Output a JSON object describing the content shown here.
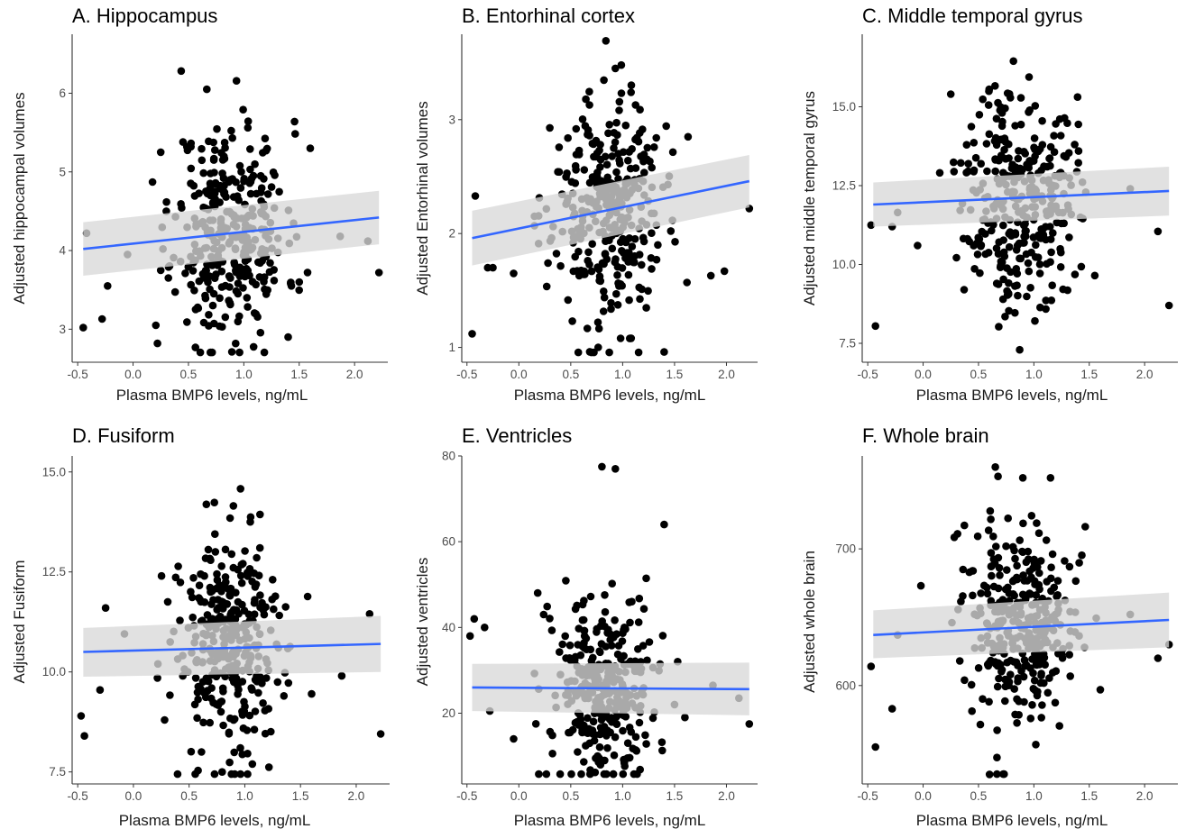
{
  "colors": {
    "points": "#000000",
    "fit_line": "#3366FF",
    "ci_band": "#d9d9d9",
    "axis": "#333333",
    "tick_text": "#4d4d4d"
  },
  "chart_data": [
    {
      "type": "scatter",
      "title": "A. Hippocampus",
      "xlabel": "Plasma BMP6 levels, ng/mL",
      "ylabel": "Adjusted hippocampal volumes",
      "xlim": [
        -0.55,
        2.3
      ],
      "ylim": [
        2.58,
        6.75
      ],
      "xticks": [
        -0.5,
        0.0,
        0.5,
        1.0,
        1.5,
        2.0
      ],
      "xtick_labels": [
        "-0.5",
        "0.0",
        "0.5",
        "1.0",
        "1.5",
        "2.0"
      ],
      "yticks": [
        3,
        4,
        5,
        6
      ],
      "ytick_labels": [
        "3",
        "4",
        "5",
        "6"
      ],
      "fit": {
        "x": [
          -0.45,
          2.22
        ],
        "y": [
          4.02,
          4.42
        ],
        "ci_lo": [
          3.68,
          4.08
        ],
        "ci_hi": [
          4.36,
          4.76
        ]
      },
      "outliers": {
        "x": [
          -0.45,
          -0.42,
          -0.28,
          -0.23,
          -0.05,
          0.22,
          0.27,
          1.87,
          2.12,
          2.22,
          1.6,
          1.5,
          1.4,
          0.25,
          0.3
        ],
        "y": [
          3.02,
          4.22,
          3.13,
          3.55,
          3.95,
          2.82,
          4.02,
          4.18,
          4.12,
          3.72,
          5.3,
          3.6,
          2.9,
          5.25,
          4.5
        ]
      },
      "cloud": {
        "x_center": 0.88,
        "x_sd": 0.25,
        "y_center": 4.25,
        "y_sd": 0.7,
        "n": 330,
        "seed": 11
      }
    },
    {
      "type": "scatter",
      "title": "B. Entorhinal cortex",
      "xlabel": "Plasma BMP6 levels, ng/mL",
      "ylabel": "Adjusted Entorhinal volumes",
      "xlim": [
        -0.55,
        2.3
      ],
      "ylim": [
        0.87,
        3.75
      ],
      "xticks": [
        -0.5,
        0.0,
        0.5,
        1.0,
        1.5,
        2.0
      ],
      "xtick_labels": [
        "-0.5",
        "0.0",
        "0.5",
        "1.0",
        "1.5",
        "2.0"
      ],
      "yticks": [
        1,
        2,
        3
      ],
      "ytick_labels": [
        "1",
        "2",
        "3"
      ],
      "fit": {
        "x": [
          -0.45,
          2.22
        ],
        "y": [
          1.96,
          2.46
        ],
        "ci_lo": [
          1.72,
          2.23
        ],
        "ci_hi": [
          2.2,
          2.69
        ]
      },
      "outliers": {
        "x": [
          -0.45,
          -0.42,
          -0.3,
          -0.25,
          -0.05,
          2.22,
          1.98,
          1.63,
          1.85,
          1.4,
          1.62,
          0.98
        ],
        "y": [
          1.12,
          2.33,
          1.7,
          1.7,
          1.65,
          2.22,
          1.67,
          2.85,
          1.63,
          0.96,
          1.57,
          1.08
        ]
      },
      "cloud": {
        "x_center": 0.85,
        "x_sd": 0.26,
        "y_center": 2.2,
        "y_sd": 0.5,
        "n": 330,
        "seed": 23
      }
    },
    {
      "type": "scatter",
      "title": "C. Middle temporal gyrus",
      "xlabel": "Plasma BMP6 levels, ng/mL",
      "ylabel": "Adjusted middle temporal gyrus",
      "xlim": [
        -0.55,
        2.3
      ],
      "ylim": [
        6.9,
        17.3
      ],
      "xticks": [
        -0.5,
        0.0,
        0.5,
        1.0,
        1.5,
        2.0
      ],
      "xtick_labels": [
        "-0.5",
        "0.0",
        "0.5",
        "1.0",
        "1.5",
        "2.0"
      ],
      "yticks": [
        7.5,
        10.0,
        12.5,
        15.0
      ],
      "ytick_labels": [
        "7.5",
        "10.0",
        "12.5",
        "15.0"
      ],
      "fit": {
        "x": [
          -0.45,
          2.22
        ],
        "y": [
          11.9,
          12.33
        ],
        "ci_lo": [
          11.2,
          11.55
        ],
        "ci_hi": [
          12.6,
          13.1
        ]
      },
      "outliers": {
        "x": [
          -0.47,
          -0.43,
          -0.28,
          -0.23,
          -0.05,
          2.22,
          2.12,
          1.87,
          1.55,
          0.25,
          0.37
        ],
        "y": [
          11.25,
          8.05,
          11.2,
          11.65,
          10.6,
          8.7,
          11.05,
          12.4,
          9.65,
          15.4,
          9.2
        ]
      },
      "cloud": {
        "x_center": 0.87,
        "x_sd": 0.25,
        "y_center": 12.2,
        "y_sd": 1.75,
        "n": 330,
        "seed": 37
      }
    },
    {
      "type": "scatter",
      "title": "D. Fusiform",
      "xlabel": "Plasma BMP6 levels, ng/mL",
      "ylabel": "Adjusted Fusiform",
      "xlim": [
        -0.55,
        2.3
      ],
      "ylim": [
        7.2,
        15.4
      ],
      "xticks": [
        -0.5,
        0.0,
        0.5,
        1.0,
        1.5,
        2.0
      ],
      "xtick_labels": [
        "-0.5",
        "0.0",
        "0.5",
        "1.0",
        "1.5",
        "2.0"
      ],
      "yticks": [
        7.5,
        10.0,
        12.5,
        15.0
      ],
      "ytick_labels": [
        "7.5",
        "10.0",
        "12.5",
        "15.0"
      ],
      "fit": {
        "x": [
          -0.45,
          2.22
        ],
        "y": [
          10.5,
          10.7
        ],
        "ci_lo": [
          9.88,
          10.0
        ],
        "ci_hi": [
          11.1,
          11.4
        ]
      },
      "outliers": {
        "x": [
          -0.47,
          -0.44,
          -0.3,
          -0.25,
          -0.08,
          2.22,
          2.12,
          1.87,
          1.6,
          0.22,
          0.28
        ],
        "y": [
          8.9,
          8.4,
          9.55,
          11.6,
          10.95,
          8.45,
          11.45,
          9.9,
          9.45,
          10.2,
          8.8
        ]
      },
      "cloud": {
        "x_center": 0.88,
        "x_sd": 0.25,
        "y_center": 10.6,
        "y_sd": 1.45,
        "n": 330,
        "seed": 53
      }
    },
    {
      "type": "scatter",
      "title": "E. Ventricles",
      "xlabel": "Plasma BMP6 levels, ng/mL",
      "ylabel": "Adjusted ventricles",
      "xlim": [
        -0.55,
        2.3
      ],
      "ylim": [
        3.5,
        80
      ],
      "xticks": [
        -0.5,
        0.0,
        0.5,
        1.0,
        1.5,
        2.0
      ],
      "xtick_labels": [
        "-0.5",
        "0.0",
        "0.5",
        "1.0",
        "1.5",
        "2.0"
      ],
      "yticks": [
        20,
        40,
        60,
        80
      ],
      "ytick_labels": [
        "20",
        "40",
        "60",
        "80"
      ],
      "fit": {
        "x": [
          -0.45,
          2.22
        ],
        "y": [
          26.0,
          25.6
        ],
        "ci_lo": [
          20.5,
          19.5
        ],
        "ci_hi": [
          31.5,
          31.8
        ]
      },
      "outliers": {
        "x": [
          -0.47,
          -0.43,
          -0.33,
          -0.28,
          -0.05,
          2.22,
          2.12,
          1.87,
          1.6,
          1.4,
          0.8,
          0.93
        ],
        "y": [
          38.0,
          42.0,
          40.0,
          20.5,
          14.0,
          17.5,
          23.5,
          26.5,
          19.0,
          64.0,
          77.5,
          77.0
        ]
      },
      "cloud": {
        "x_center": 0.82,
        "x_sd": 0.26,
        "y_center": 25,
        "y_sd": 11,
        "n": 330,
        "seed": 71
      }
    },
    {
      "type": "scatter",
      "title": "F. Whole brain",
      "xlabel": "Plasma BMP6 levels, ng/mL",
      "ylabel": "Adjusted whole brain",
      "xlim": [
        -0.55,
        2.3
      ],
      "ylim": [
        528,
        768
      ],
      "xticks": [
        -0.5,
        0.0,
        0.5,
        1.0,
        1.5,
        2.0
      ],
      "xtick_labels": [
        "-0.5",
        "0.0",
        "0.5",
        "1.0",
        "1.5",
        "2.0"
      ],
      "yticks": [
        600,
        700
      ],
      "ytick_labels": [
        "600",
        "700"
      ],
      "fit": {
        "x": [
          -0.45,
          2.22
        ],
        "y": [
          637,
          648
        ],
        "ci_lo": [
          620,
          628
        ],
        "ci_hi": [
          655,
          668
        ]
      },
      "outliers": {
        "x": [
          -0.47,
          -0.43,
          -0.28,
          -0.23,
          -0.02,
          2.22,
          2.12,
          1.87,
          1.6,
          0.6,
          0.9,
          1.15
        ],
        "y": [
          614,
          555,
          583,
          637,
          673,
          630,
          620,
          652,
          597,
          535,
          752,
          752
        ]
      },
      "cloud": {
        "x_center": 0.88,
        "x_sd": 0.25,
        "y_center": 645,
        "y_sd": 38,
        "n": 330,
        "seed": 89
      }
    }
  ]
}
